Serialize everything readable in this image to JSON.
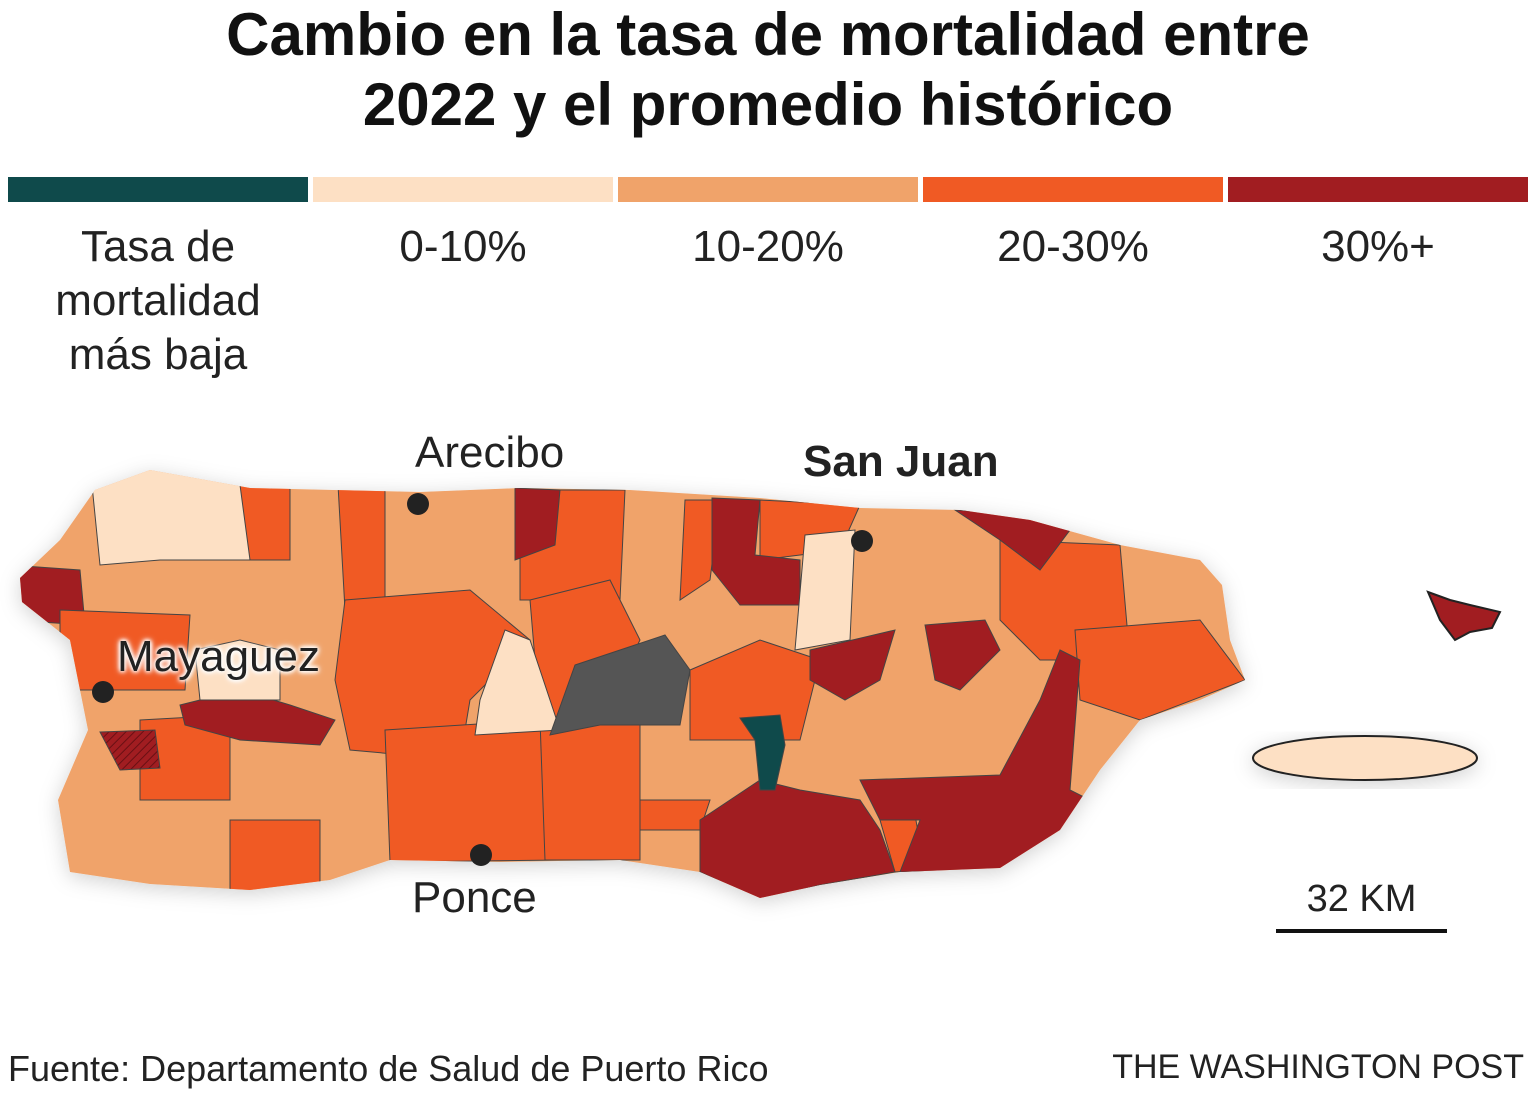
{
  "title": {
    "line1": "Cambio en la tasa de mortalidad entre",
    "line2": "2022 y el promedio histórico"
  },
  "legend": [
    {
      "label": "Tasa de mortalidad más baja",
      "color": "#0f4a4b"
    },
    {
      "label": "0-10%",
      "color": "#fde0c4"
    },
    {
      "label": "10-20%",
      "color": "#f0a36a"
    },
    {
      "label": "20-30%",
      "color": "#f05a24"
    },
    {
      "label": "30%+",
      "color": "#a11d21"
    }
  ],
  "no_data_color": "#555555",
  "cities": {
    "arecibo": "Arecibo",
    "san_juan": "San Juan",
    "mayaguez": "Mayaguez",
    "ponce": "Ponce"
  },
  "scale": "32 KM",
  "footer": {
    "source": "Fuente: Departamento de Salud de Puerto Rico",
    "credit": "THE WASHINGTON POST"
  }
}
